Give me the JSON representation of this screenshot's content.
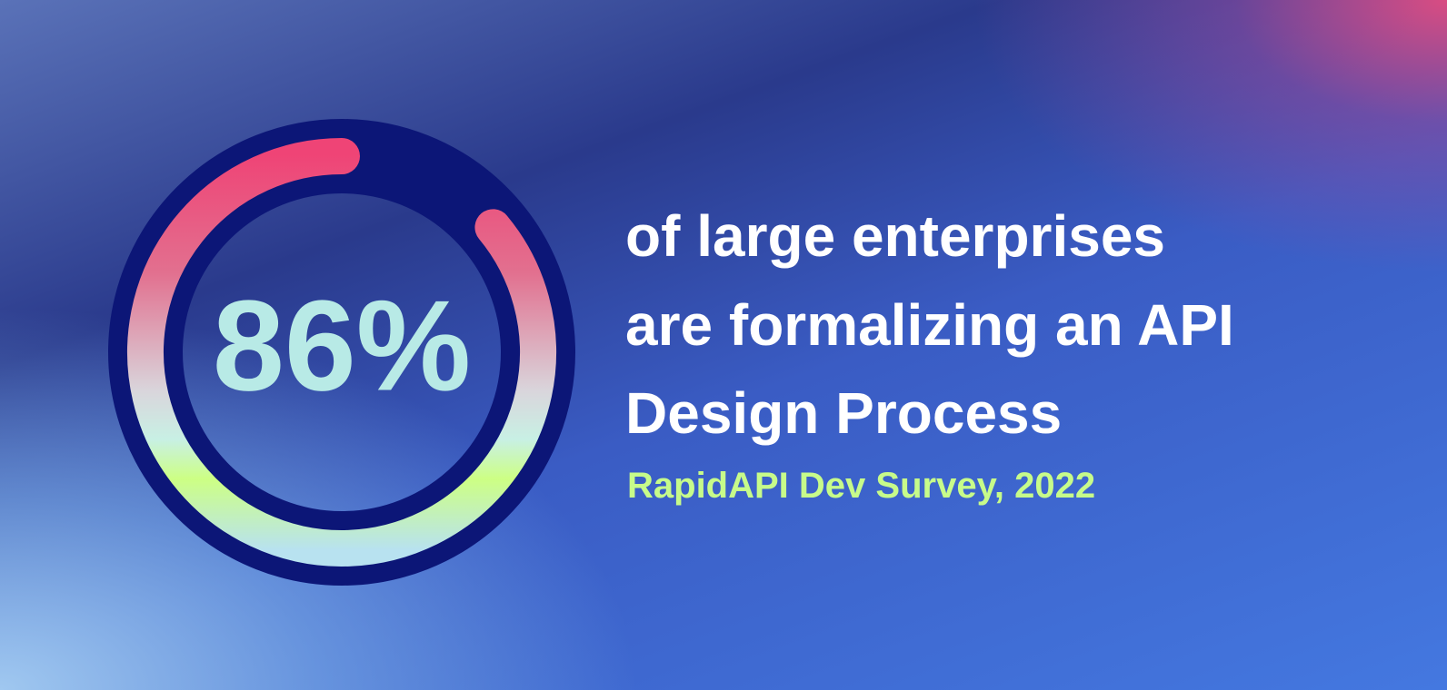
{
  "chart_data": {
    "type": "gauge",
    "values": [
      86
    ],
    "value_labels": [
      "86%"
    ],
    "ylim": [
      0,
      100
    ],
    "text": [
      "of large enterprises",
      "are formalizing an API",
      "Design Process"
    ],
    "source": "RapidAPI Dev Survey, 2022"
  }
}
